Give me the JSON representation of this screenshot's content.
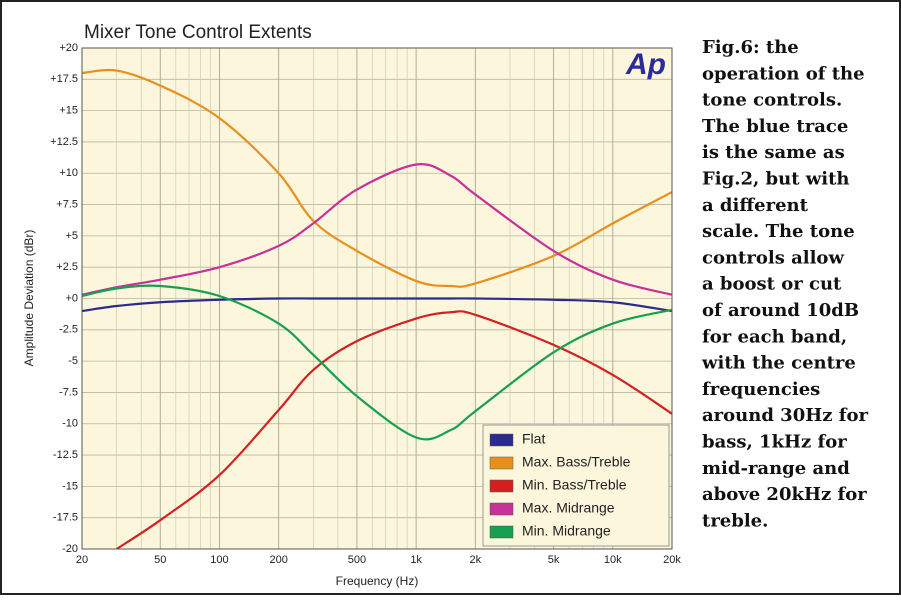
{
  "chart_data": {
    "type": "line",
    "title": "Mixer Tone Control Extents",
    "logo": "Ap",
    "xlabel": "Frequency (Hz)",
    "ylabel": "Amplitude Deviation (dBr)",
    "xscale": "log",
    "x": [
      20,
      30,
      50,
      100,
      200,
      300,
      500,
      1000,
      1500,
      2000,
      5000,
      10000,
      20000
    ],
    "series": [
      {
        "name": "Flat",
        "color": "#2b2b8c",
        "values": [
          -1.0,
          -0.6,
          -0.3,
          -0.1,
          0,
          0,
          0,
          0,
          0,
          0,
          -0.1,
          -0.3,
          -1.0
        ]
      },
      {
        "name": "Max. Bass/Treble",
        "color": "#e8901a",
        "values": [
          18,
          18.2,
          17,
          14.4,
          10,
          6.2,
          3.8,
          1.4,
          1,
          1.2,
          3.4,
          6,
          8.5
        ]
      },
      {
        "name": "Min. Bass/Treble",
        "color": "#d42020",
        "values": [
          null,
          -20,
          -17.7,
          -14.1,
          -8.9,
          -5.7,
          -3.4,
          -1.6,
          -1.1,
          -1.3,
          -3.7,
          -6.1,
          -9.2
        ]
      },
      {
        "name": "Max. Midrange",
        "color": "#c8309a",
        "values": [
          0.3,
          0.9,
          1.5,
          2.5,
          4.2,
          6,
          8.7,
          10.7,
          9.8,
          8.3,
          3.8,
          1.5,
          0.3
        ]
      },
      {
        "name": "Min. Midrange",
        "color": "#17a050",
        "values": [
          0.2,
          0.8,
          1.0,
          0.2,
          -2,
          -4.5,
          -7.8,
          -11.1,
          -10.5,
          -9,
          -4.3,
          -2,
          -0.9
        ]
      }
    ],
    "xlim": [
      20,
      20000
    ],
    "ylim": [
      -20,
      20
    ],
    "xticks": [
      20,
      50,
      100,
      200,
      500,
      {
        "value": 1000,
        "label": "1k"
      },
      {
        "value": 2000,
        "label": "2k"
      },
      {
        "value": 5000,
        "label": "5k"
      },
      {
        "value": 10000,
        "label": "10k"
      },
      {
        "value": 20000,
        "label": "20k"
      }
    ],
    "xticks_minor": [
      30,
      40,
      60,
      70,
      80,
      90,
      300,
      400,
      600,
      700,
      800,
      900,
      3000,
      4000,
      6000,
      7000,
      8000,
      9000
    ],
    "yticks": [
      -20,
      -17.5,
      -15,
      -12.5,
      -10,
      -7.5,
      -5,
      -2.5,
      {
        "value": 0,
        "label": "+0"
      },
      {
        "value": 2.5,
        "label": "+2.5"
      },
      {
        "value": 5,
        "label": "+5"
      },
      {
        "value": 7.5,
        "label": "+7.5"
      },
      {
        "value": 10,
        "label": "+10"
      },
      {
        "value": 12.5,
        "label": "+12.5"
      },
      {
        "value": 15,
        "label": "+15"
      },
      {
        "value": 17.5,
        "label": "+17.5"
      },
      {
        "value": 20,
        "label": "+20"
      }
    ],
    "grid": true,
    "legend": "lower right",
    "caption": [
      "Fig.6: the",
      "operation of the",
      "tone controls.",
      "The blue trace",
      "is the same as",
      "Fig.2, but with",
      "a different",
      "scale. The tone",
      "controls allow",
      "a boost or cut",
      "of around 10dB",
      "for each band,",
      "with the centre",
      "frequencies",
      "around 30Hz for",
      "bass, 1kHz for",
      "mid-range and",
      "above 20kHz for",
      "treble."
    ]
  }
}
